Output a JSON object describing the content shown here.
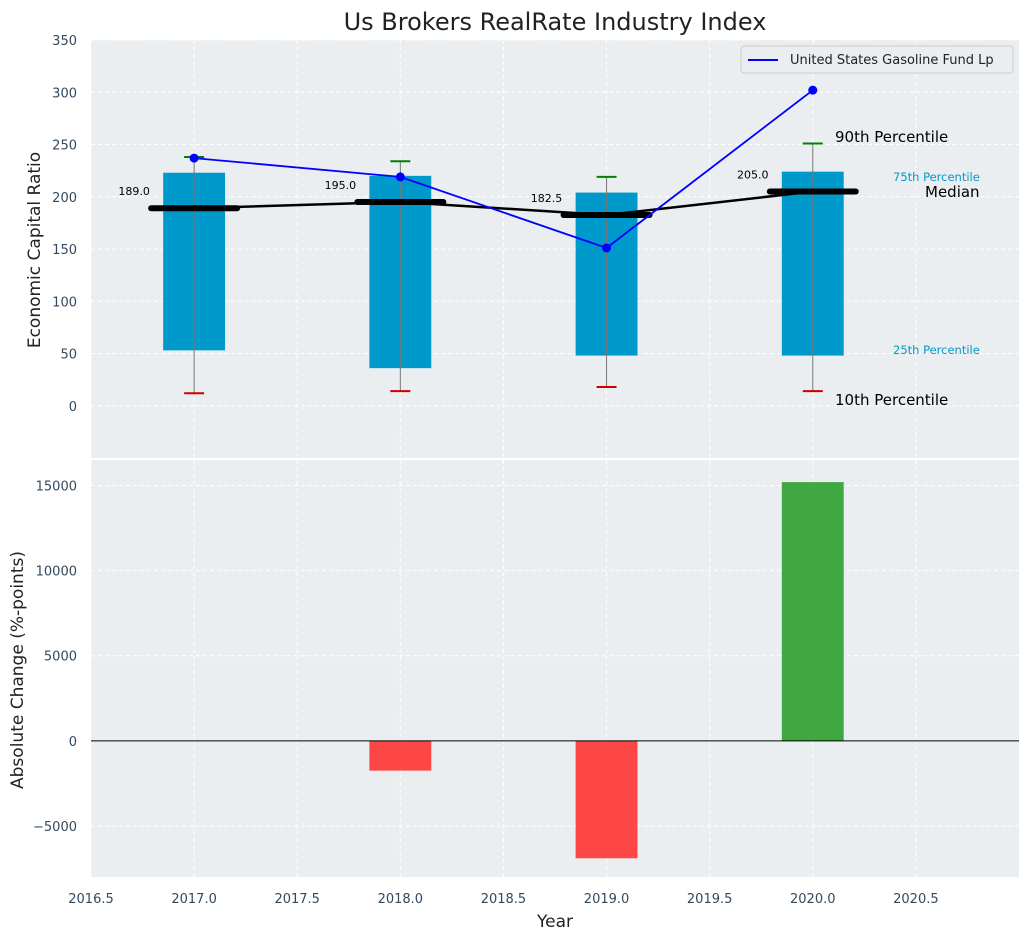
{
  "chart_data": [
    {
      "type": "box-range-bar",
      "title": "Us Brokers RealRate Industry Index",
      "xlabel": "",
      "ylabel": "Economic Capital Ratio",
      "x": [
        2017,
        2018,
        2019,
        2020
      ],
      "xlim": [
        2016.5,
        2021.0
      ],
      "ylim": [
        -50,
        350
      ],
      "y_ticks": [
        0,
        50,
        100,
        150,
        200,
        250,
        300,
        350
      ],
      "grid": true,
      "legend_position": "top-right",
      "percentiles": {
        "p10": [
          12,
          14,
          18,
          14
        ],
        "p25": [
          53,
          36,
          48,
          48
        ],
        "median": [
          189.0,
          195.0,
          182.5,
          205.0
        ],
        "p75": [
          223,
          220,
          204,
          224
        ],
        "p90": [
          238,
          234,
          219,
          251
        ]
      },
      "median_labels": [
        "189.0",
        "195.0",
        "182.5",
        "205.0"
      ],
      "series": [
        {
          "name": "United States Gasoline Fund Lp",
          "values": [
            237,
            219,
            151,
            302
          ],
          "color": "#0000ff"
        }
      ],
      "annotations": {
        "p90": "90th Percentile",
        "p75": "75th Percentile",
        "median": "Median",
        "p25": "25th Percentile",
        "p10": "10th Percentile"
      },
      "colors": {
        "box": "#0099cc",
        "median": "#000000",
        "p90_cap": "#008000",
        "p10_cap": "#cc0000",
        "background": "#eaeef0"
      }
    },
    {
      "type": "bar",
      "title": "",
      "xlabel": "Year",
      "ylabel": "Absolute Change (%-points)",
      "x": [
        2017,
        2018,
        2019,
        2020
      ],
      "values": [
        0,
        -1750,
        -6900,
        15200
      ],
      "xlim": [
        2016.5,
        2021.0
      ],
      "ylim": [
        -8000,
        16500
      ],
      "x_ticks": [
        "2016.5",
        "2017.0",
        "2017.5",
        "2018.0",
        "2018.5",
        "2019.0",
        "2019.5",
        "2020.0",
        "2020.5"
      ],
      "y_ticks": [
        "−5000",
        "0",
        "5000",
        "10000",
        "15000"
      ],
      "grid": true,
      "colors": {
        "positive": "#2ca02c",
        "negative": "#ff3333",
        "background": "#eaeef0"
      }
    }
  ]
}
